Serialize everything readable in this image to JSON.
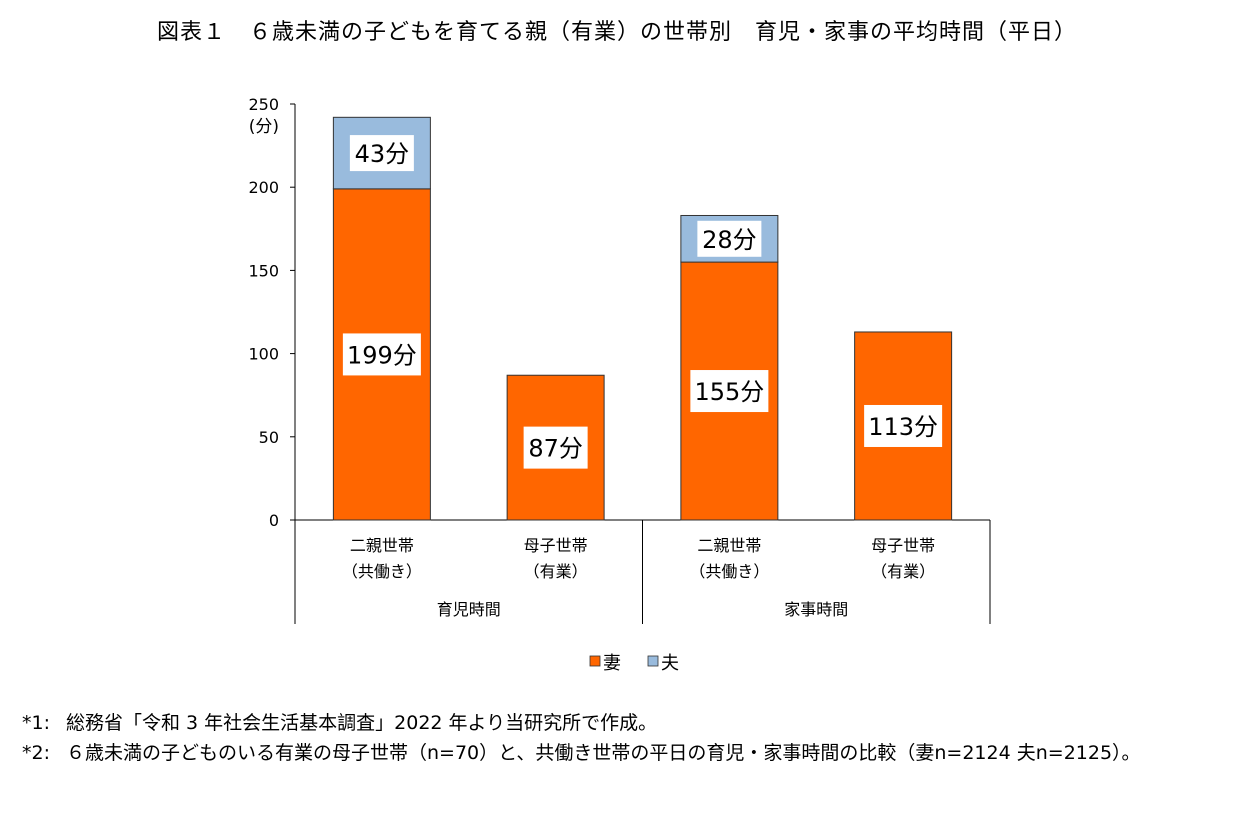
{
  "title": "図表１　６歳未満の子どもを育てる親（有業）の世帯別　育児・家事の平均時間（平日）",
  "chart_data": {
    "type": "bar",
    "stacked": true,
    "y_unit_label": "(分)",
    "ylim": [
      0,
      250
    ],
    "yticks": [
      0,
      50,
      100,
      150,
      200,
      250
    ],
    "categories": [
      "二親世帯\n（共働き）",
      "母子世帯\n（有業）",
      "二親世帯\n（共働き）",
      "母子世帯\n（有業）"
    ],
    "groups": [
      {
        "label": "育児時間",
        "categories": [
          0,
          1
        ]
      },
      {
        "label": "家事時間",
        "categories": [
          2,
          3
        ]
      }
    ],
    "series": [
      {
        "name": "妻",
        "color": "#ff6600",
        "values": [
          199,
          87,
          155,
          113
        ],
        "labels": [
          "199分",
          "87分",
          "155分",
          "113分"
        ]
      },
      {
        "name": "夫",
        "color": "#99bbdd",
        "values": [
          43,
          null,
          28,
          null
        ],
        "labels": [
          "43分",
          null,
          "28分",
          null
        ]
      }
    ],
    "legend_position": "bottom",
    "grid": false
  },
  "notes": [
    {
      "mark": "*1:",
      "text": "総務省「令和 3 年社会生活基本調査」2022 年より当研究所で作成。"
    },
    {
      "mark": "*2:",
      "text": "６歳未満の子どものいる有業の母子世帯（n=70）と、共働き世帯の平日の育児・家事時間の比較（妻n=2124 夫n=2125）。"
    }
  ]
}
